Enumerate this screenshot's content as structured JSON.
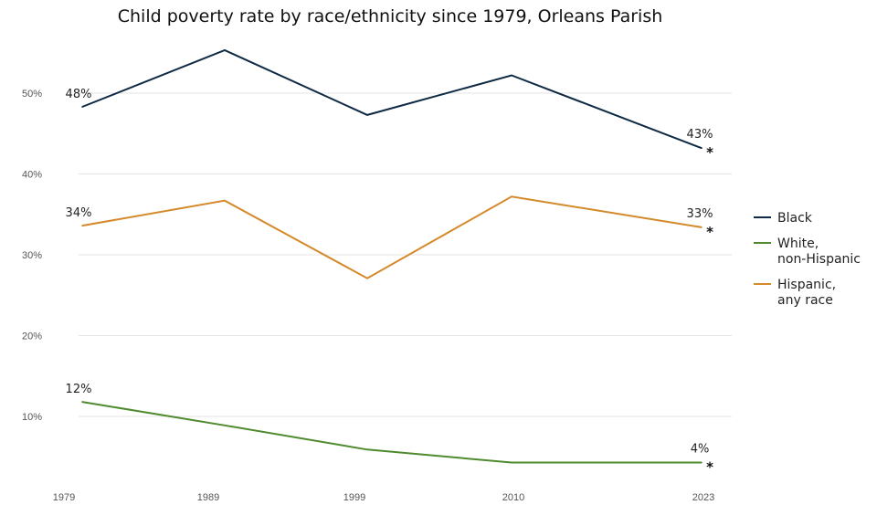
{
  "chart_data": {
    "type": "line",
    "title": "Child poverty rate by race/ethnicity since 1979, Orleans Parish",
    "xlabel": "",
    "ylabel": "",
    "x": [
      1979,
      1989,
      1999,
      2010,
      2023
    ],
    "x_tick_labels": [
      "1979",
      "1989",
      "1999",
      "2010",
      "2023"
    ],
    "ylim": [
      3,
      57
    ],
    "y_ticks": [
      10,
      20,
      30,
      40,
      50
    ],
    "y_tick_labels": [
      "10%",
      "20%",
      "30%",
      "40%",
      "50%"
    ],
    "grid": true,
    "legend_position": "right",
    "end_marker": "*",
    "series": [
      {
        "name": "Black",
        "legend_lines": [
          "Black"
        ],
        "color": "#0f2a44",
        "values": [
          48.3,
          55.3,
          47.3,
          52.2,
          43.2
        ],
        "start_label": "48%",
        "end_label": "43%"
      },
      {
        "name": "White, non-Hispanic",
        "legend_lines": [
          "White,",
          "non-Hispanic"
        ],
        "color": "#4f8a2e",
        "values": [
          11.8,
          8.9,
          5.9,
          4.3,
          4.3
        ],
        "start_label": "12%",
        "end_label": "4%"
      },
      {
        "name": "Hispanic, any race",
        "legend_lines": [
          "Hispanic,",
          "any race"
        ],
        "color": "#d4892a",
        "values": [
          33.6,
          36.7,
          27.1,
          37.2,
          33.4
        ],
        "start_label": "34%",
        "end_label": "33%"
      }
    ]
  }
}
